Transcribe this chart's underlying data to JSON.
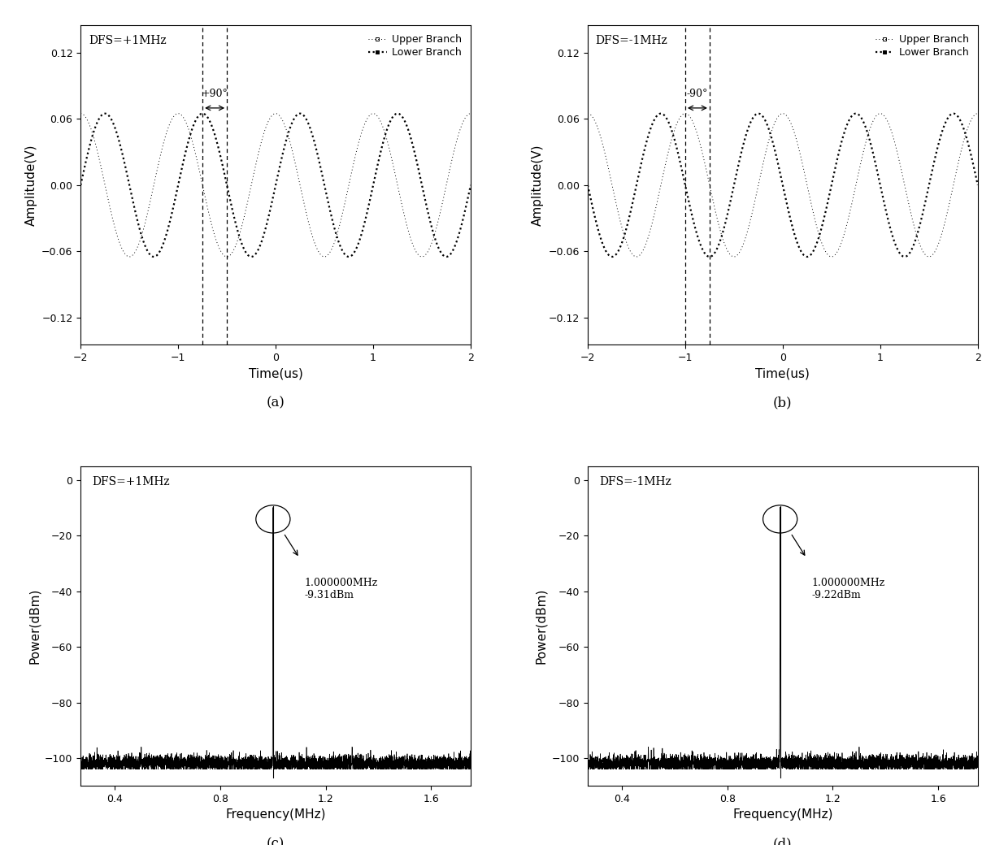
{
  "fig_width": 12.4,
  "fig_height": 10.4,
  "amplitude": 0.065,
  "freq_signal": 1.0,
  "time_range": [
    -2,
    2
  ],
  "ylim_time": [
    -0.145,
    0.145
  ],
  "yticks_time": [
    -0.12,
    -0.06,
    0.0,
    0.06,
    0.12
  ],
  "xticks_time": [
    -2,
    -1,
    0,
    1,
    2
  ],
  "panel_a_dfs": "DFS=+1MHz",
  "panel_b_dfs": "DFS=-1MHz",
  "panel_c_dfs": "DFS=+1MHz",
  "panel_d_dfs": "DFS=-1MHz",
  "xlabel_time": "Time(us)",
  "ylabel_time": "Amplitude(V)",
  "xlabel_freq": "Frequency(MHz)",
  "ylabel_freq": "Power(dBm)",
  "ylim_freq": [
    -110,
    5
  ],
  "yticks_freq": [
    0,
    -20,
    -40,
    -60,
    -80,
    -100
  ],
  "xlim_freq": [
    0.27,
    1.75
  ],
  "xticks_freq": [
    0.4,
    0.8,
    1.2,
    1.6
  ],
  "peak_power_c": -9.31,
  "peak_power_d": -9.22,
  "annotation_c": "1.000000MHz\n-9.31dBm",
  "annotation_d": "1.000000MHz\n-9.22dBm",
  "noise_floor": -104,
  "background_color": "#ffffff",
  "dline_a": [
    -0.75,
    -0.5
  ],
  "dline_b": [
    -1.0,
    -0.75
  ],
  "arrow_label_a": "+90°",
  "arrow_label_b": "-90°"
}
